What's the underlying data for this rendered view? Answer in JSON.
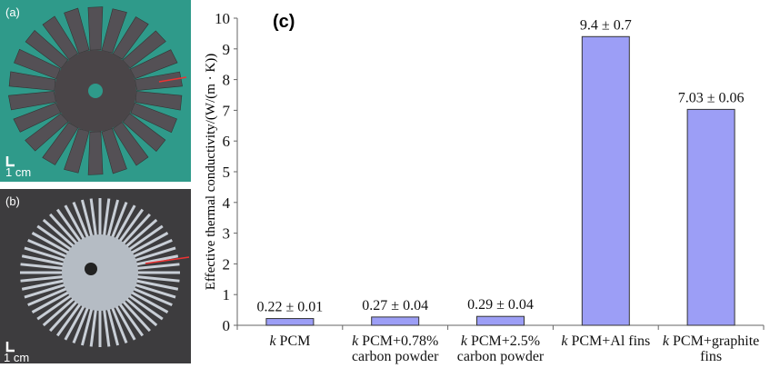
{
  "panels": {
    "a": "(a)",
    "b": "(b)",
    "c": "(c)"
  },
  "scale_bar": "1 cm",
  "chart_data": {
    "type": "bar",
    "title": "(c)",
    "xlabel": "",
    "ylabel": "Effective thermal conductivity/(W/(m · K))",
    "ylim": [
      0,
      10
    ],
    "yticks": [
      0,
      1,
      2,
      3,
      4,
      5,
      6,
      7,
      8,
      9,
      10
    ],
    "categories": [
      [
        "k PCM"
      ],
      [
        "k PCM+0.78%",
        "carbon powder"
      ],
      [
        "k PCM+2.5%",
        "carbon powder"
      ],
      [
        "k PCM+Al fins"
      ],
      [
        "k PCM+graphite",
        "fins"
      ]
    ],
    "values": [
      0.22,
      0.27,
      0.29,
      9.4,
      7.03
    ],
    "errors": [
      0.01,
      0.04,
      0.04,
      0.7,
      0.06
    ],
    "value_labels": [
      "0.22 ± 0.01",
      "0.27 ± 0.04",
      "0.29 ± 0.04",
      "9.4 ± 0.7",
      "7.03 ± 0.06"
    ],
    "bar_color": "#9c9ef6",
    "grid": false
  }
}
